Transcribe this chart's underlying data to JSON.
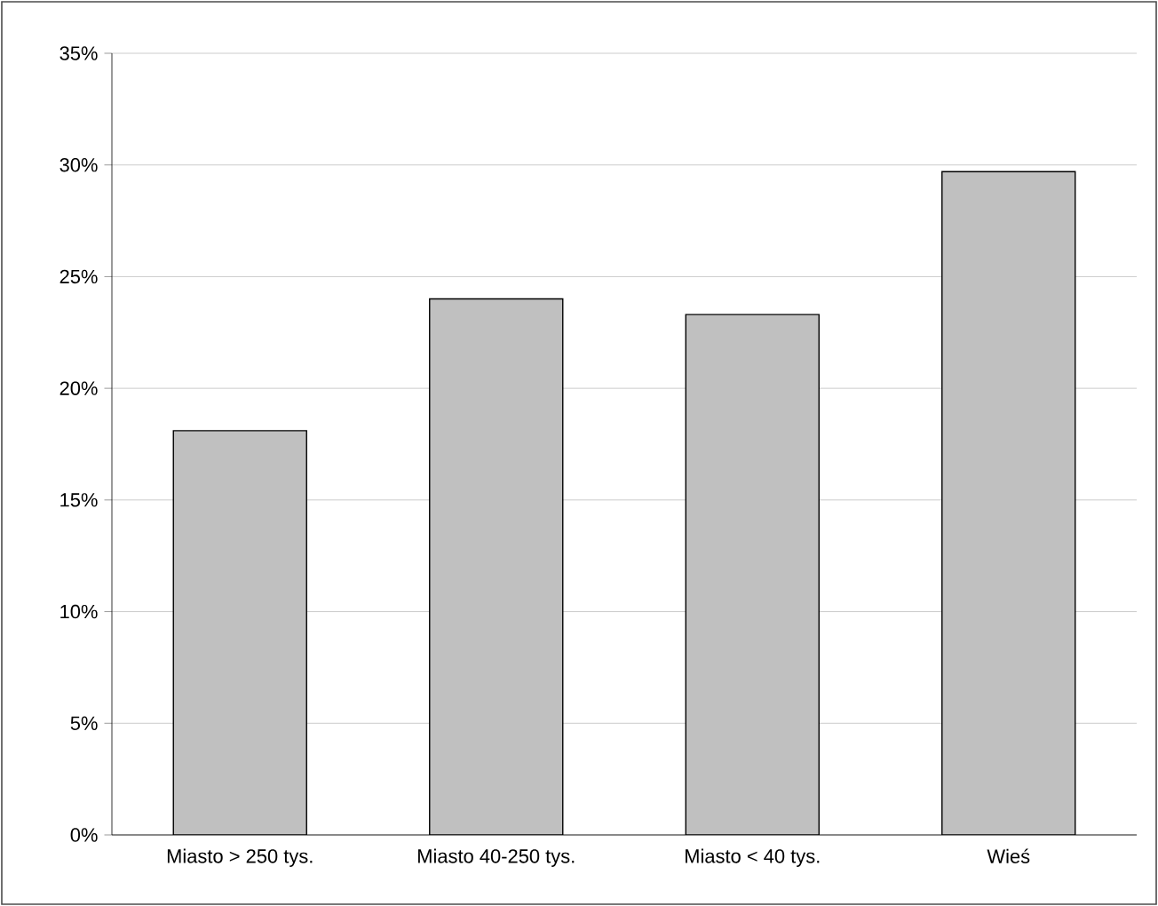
{
  "chart_data": {
    "type": "bar",
    "categories": [
      "Miasto > 250 tys.",
      "Miasto 40-250 tys.",
      "Miasto < 40 tys.",
      "Wieś"
    ],
    "values": [
      18.1,
      24.0,
      23.3,
      29.7
    ],
    "color": "#c0c0c0",
    "ylim": [
      0,
      35
    ],
    "yticks": [
      {
        "value": 0,
        "label": "0%"
      },
      {
        "value": 5,
        "label": "5%"
      },
      {
        "value": 10,
        "label": "10%"
      },
      {
        "value": 15,
        "label": "15%"
      },
      {
        "value": 20,
        "label": "20%"
      },
      {
        "value": 25,
        "label": "25%"
      },
      {
        "value": 30,
        "label": "30%"
      },
      {
        "value": 35,
        "label": "35%"
      }
    ],
    "grid": "y"
  }
}
